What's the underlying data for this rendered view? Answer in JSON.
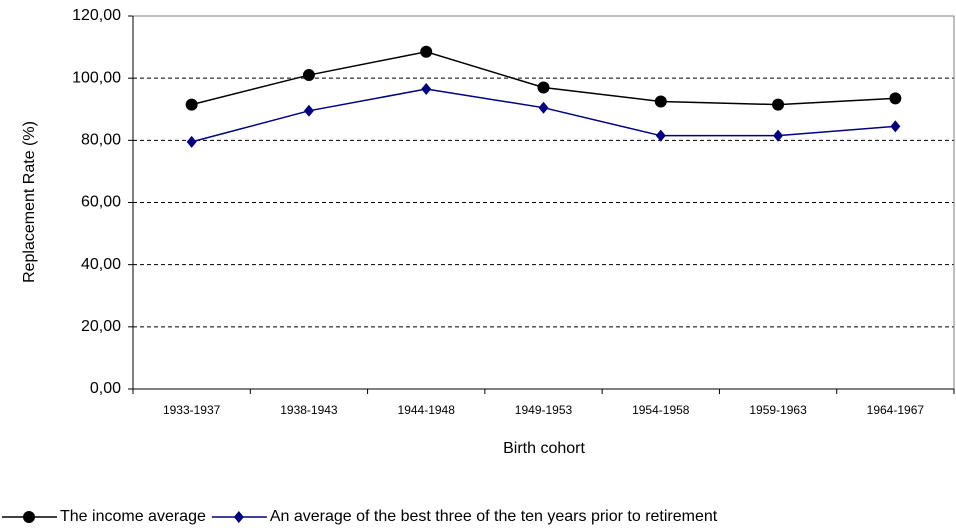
{
  "chart_data": {
    "type": "line",
    "y_label": "Replacement Rate (%)",
    "x_label": "Birth cohort",
    "categories": [
      "1933-1937",
      "1938-1943",
      "1944-1948",
      "1949-1953",
      "1954-1958",
      "1959-1963",
      "1964-1967"
    ],
    "series": [
      {
        "name": "The income average",
        "color": "#000000",
        "marker": "circle",
        "values": [
          91.5,
          101,
          108.5,
          97,
          92.5,
          91.5,
          93.5
        ]
      },
      {
        "name": "An average of the best three of the ten years prior to retirement",
        "color": "#000080",
        "marker": "diamond",
        "values": [
          79.5,
          89.5,
          96.5,
          90.5,
          81.5,
          81.5,
          84.5
        ]
      }
    ],
    "ylim": [
      0,
      120
    ],
    "yticks": [
      {
        "value": 0,
        "label": "0,00"
      },
      {
        "value": 20,
        "label": "20,00"
      },
      {
        "value": 40,
        "label": "40,00"
      },
      {
        "value": 60,
        "label": "60,00"
      },
      {
        "value": 80,
        "label": "80,00"
      },
      {
        "value": 100,
        "label": "100,00"
      },
      {
        "value": 120,
        "label": "120,00"
      }
    ],
    "grid": true
  }
}
